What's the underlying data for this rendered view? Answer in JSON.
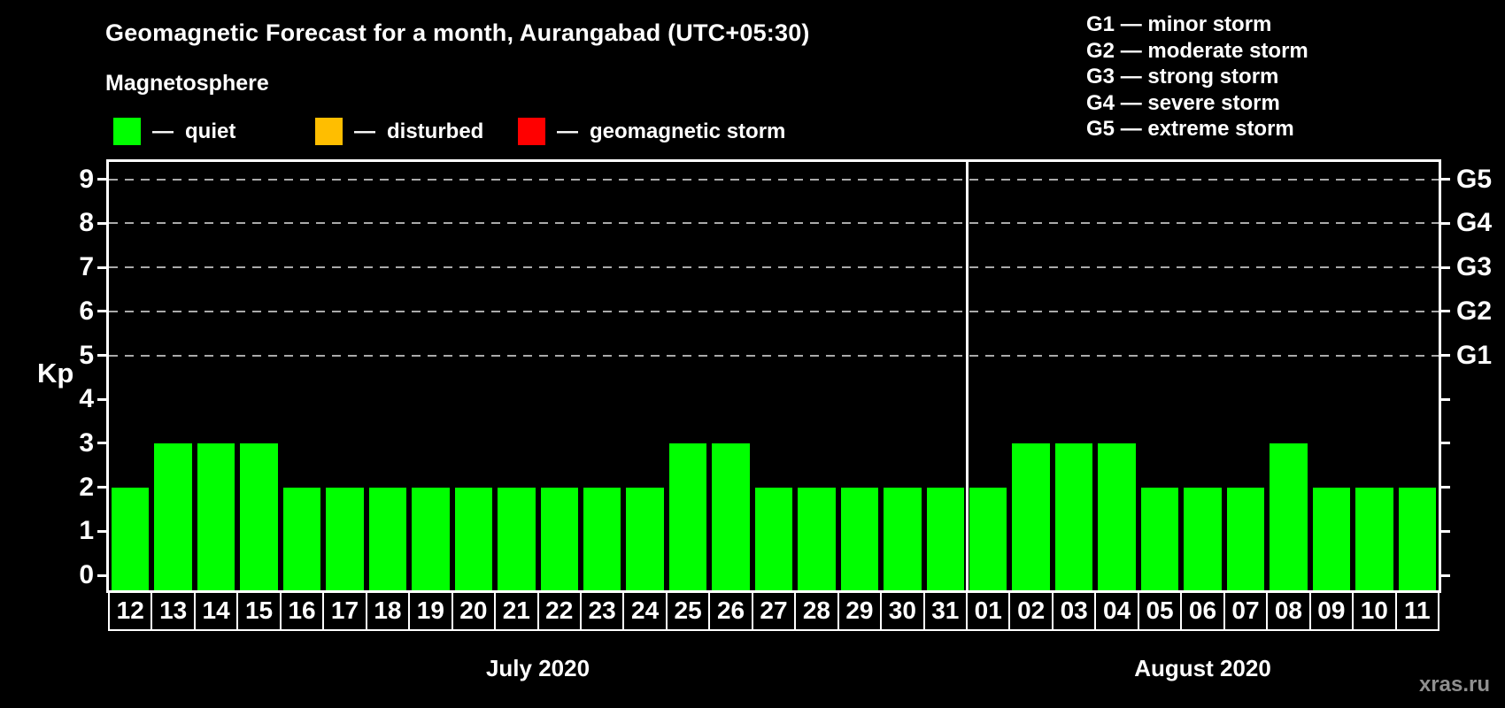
{
  "header": {
    "title": "Geomagnetic Forecast for a month, Aurangabad (UTC+05:30)"
  },
  "legend": {
    "title": "Magnetosphere",
    "separator": "—",
    "items": [
      {
        "name": "quiet",
        "color": "#00ff00",
        "label": "quiet"
      },
      {
        "name": "disturbed",
        "color": "#ffbe00",
        "label": "disturbed"
      },
      {
        "name": "geomagnetic-storm",
        "color": "#ff0000",
        "label": "geomagnetic storm"
      }
    ]
  },
  "g_legend": {
    "separator": "—",
    "items": [
      {
        "code": "G1",
        "label": "minor storm"
      },
      {
        "code": "G2",
        "label": "moderate storm"
      },
      {
        "code": "G3",
        "label": "strong storm"
      },
      {
        "code": "G4",
        "label": "severe storm"
      },
      {
        "code": "G5",
        "label": "extreme storm"
      }
    ]
  },
  "chart_data": {
    "type": "bar",
    "title": "Geomagnetic Forecast for a month, Aurangabad (UTC+05:30)",
    "ylabel": "Kp",
    "ylim": [
      0,
      9
    ],
    "yticks": [
      0,
      1,
      2,
      3,
      4,
      5,
      6,
      7,
      8,
      9
    ],
    "gridlines_at": [
      5,
      6,
      7,
      8,
      9
    ],
    "right_axis_labels": [
      {
        "code": "G1",
        "kp": 5
      },
      {
        "code": "G2",
        "kp": 6
      },
      {
        "code": "G3",
        "kp": 7
      },
      {
        "code": "G4",
        "kp": 8
      },
      {
        "code": "G5",
        "kp": 9
      }
    ],
    "bar_status": "quiet",
    "bar_color": "#00ff00",
    "grid_on": true,
    "legend_position": "top",
    "sections": [
      {
        "label": "July 2020",
        "days": [
          "12",
          "13",
          "14",
          "15",
          "16",
          "17",
          "18",
          "19",
          "20",
          "21",
          "22",
          "23",
          "24",
          "25",
          "26",
          "27",
          "28",
          "29",
          "30",
          "31"
        ],
        "values": [
          2,
          3,
          3,
          3,
          2,
          2,
          2,
          2,
          2,
          2,
          2,
          2,
          2,
          3,
          3,
          2,
          2,
          2,
          2,
          2
        ]
      },
      {
        "label": "August 2020",
        "days": [
          "01",
          "02",
          "03",
          "04",
          "05",
          "06",
          "07",
          "08",
          "09",
          "10",
          "11"
        ],
        "values": [
          2,
          3,
          3,
          3,
          2,
          2,
          2,
          3,
          2,
          2,
          2
        ]
      }
    ]
  },
  "footer": {
    "watermark": "xras.ru"
  }
}
